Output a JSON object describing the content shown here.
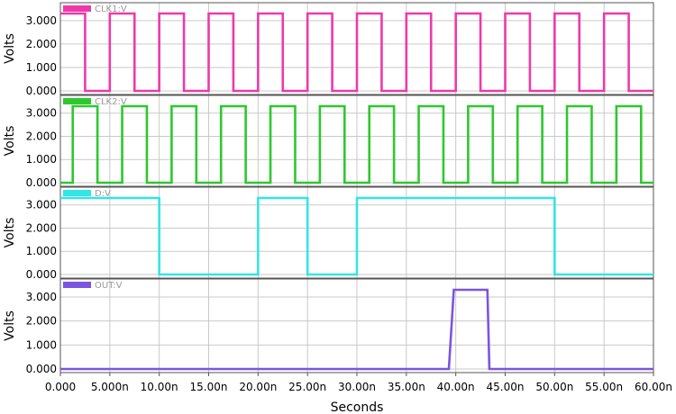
{
  "chart_data": {
    "type": "line",
    "xlabel": "Seconds",
    "x_ticks": [
      "0.000",
      "5.000n",
      "10.00n",
      "15.00n",
      "20.00n",
      "25.00n",
      "30.00n",
      "35.00n",
      "40.00n",
      "45.00n",
      "50.00n",
      "55.00n",
      "60.00n"
    ],
    "xlim": [
      0,
      60
    ],
    "x_unit": "ns",
    "grid": true,
    "panels": [
      {
        "ylabel": "Volts",
        "y_ticks": [
          "0.000",
          "1.000",
          "2.000",
          "3.000"
        ],
        "ylim": [
          0,
          3.3
        ],
        "series": [
          {
            "name": "CLK1:V",
            "color": "#ee3aa9",
            "points": [
              [
                0,
                3.3
              ],
              [
                2.5,
                3.3
              ],
              [
                2.5,
                0
              ],
              [
                5,
                0
              ],
              [
                5,
                3.3
              ],
              [
                7.5,
                3.3
              ],
              [
                7.5,
                0
              ],
              [
                10,
                0
              ],
              [
                10,
                3.3
              ],
              [
                12.5,
                3.3
              ],
              [
                12.5,
                0
              ],
              [
                15,
                0
              ],
              [
                15,
                3.3
              ],
              [
                17.5,
                3.3
              ],
              [
                17.5,
                0
              ],
              [
                20,
                0
              ],
              [
                20,
                3.3
              ],
              [
                22.5,
                3.3
              ],
              [
                22.5,
                0
              ],
              [
                25,
                0
              ],
              [
                25,
                3.3
              ],
              [
                27.5,
                3.3
              ],
              [
                27.5,
                0
              ],
              [
                30,
                0
              ],
              [
                30,
                3.3
              ],
              [
                32.5,
                3.3
              ],
              [
                32.5,
                0
              ],
              [
                35,
                0
              ],
              [
                35,
                3.3
              ],
              [
                37.5,
                3.3
              ],
              [
                37.5,
                0
              ],
              [
                40,
                0
              ],
              [
                40,
                3.3
              ],
              [
                42.5,
                3.3
              ],
              [
                42.5,
                0
              ],
              [
                45,
                0
              ],
              [
                45,
                3.3
              ],
              [
                47.5,
                3.3
              ],
              [
                47.5,
                0
              ],
              [
                50,
                0
              ],
              [
                50,
                3.3
              ],
              [
                52.5,
                3.3
              ],
              [
                52.5,
                0
              ],
              [
                55,
                0
              ],
              [
                55,
                3.3
              ],
              [
                57.5,
                3.3
              ],
              [
                57.5,
                0
              ],
              [
                60,
                0
              ]
            ]
          }
        ]
      },
      {
        "ylabel": "Volts",
        "y_ticks": [
          "0.000",
          "1.000",
          "2.000",
          "3.000"
        ],
        "ylim": [
          0,
          3.3
        ],
        "series": [
          {
            "name": "CLK2:V",
            "color": "#2ec82e",
            "points": [
              [
                0,
                0
              ],
              [
                1.25,
                0
              ],
              [
                1.25,
                3.3
              ],
              [
                3.75,
                3.3
              ],
              [
                3.75,
                0
              ],
              [
                6.25,
                0
              ],
              [
                6.25,
                3.3
              ],
              [
                8.75,
                3.3
              ],
              [
                8.75,
                0
              ],
              [
                11.25,
                0
              ],
              [
                11.25,
                3.3
              ],
              [
                13.75,
                3.3
              ],
              [
                13.75,
                0
              ],
              [
                16.25,
                0
              ],
              [
                16.25,
                3.3
              ],
              [
                18.75,
                3.3
              ],
              [
                18.75,
                0
              ],
              [
                21.25,
                0
              ],
              [
                21.25,
                3.3
              ],
              [
                23.75,
                3.3
              ],
              [
                23.75,
                0
              ],
              [
                26.25,
                0
              ],
              [
                26.25,
                3.3
              ],
              [
                28.75,
                3.3
              ],
              [
                28.75,
                0
              ],
              [
                31.25,
                0
              ],
              [
                31.25,
                3.3
              ],
              [
                33.75,
                3.3
              ],
              [
                33.75,
                0
              ],
              [
                36.25,
                0
              ],
              [
                36.25,
                3.3
              ],
              [
                38.75,
                3.3
              ],
              [
                38.75,
                0
              ],
              [
                41.25,
                0
              ],
              [
                41.25,
                3.3
              ],
              [
                43.75,
                3.3
              ],
              [
                43.75,
                0
              ],
              [
                46.25,
                0
              ],
              [
                46.25,
                3.3
              ],
              [
                48.75,
                3.3
              ],
              [
                48.75,
                0
              ],
              [
                51.25,
                0
              ],
              [
                51.25,
                3.3
              ],
              [
                53.75,
                3.3
              ],
              [
                53.75,
                0
              ],
              [
                56.25,
                0
              ],
              [
                56.25,
                3.3
              ],
              [
                58.75,
                3.3
              ],
              [
                58.75,
                0
              ],
              [
                60,
                0
              ]
            ]
          }
        ]
      },
      {
        "ylabel": "Volts",
        "y_ticks": [
          "0.000",
          "1.000",
          "2.000",
          "3.000"
        ],
        "ylim": [
          0,
          3.3
        ],
        "series": [
          {
            "name": "D:V",
            "color": "#33e5e5",
            "points": [
              [
                0,
                3.3
              ],
              [
                10,
                3.3
              ],
              [
                10,
                0
              ],
              [
                20,
                0
              ],
              [
                20,
                3.3
              ],
              [
                25,
                3.3
              ],
              [
                25,
                0
              ],
              [
                30,
                0
              ],
              [
                30,
                3.3
              ],
              [
                50,
                3.3
              ],
              [
                50,
                0
              ],
              [
                60,
                0
              ]
            ]
          }
        ]
      },
      {
        "ylabel": "Volts",
        "y_ticks": [
          "0.000",
          "1.000",
          "2.000",
          "3.000"
        ],
        "ylim": [
          0,
          3.3
        ],
        "series": [
          {
            "name": "OUT:V",
            "color": "#7b55e0",
            "points": [
              [
                0,
                0
              ],
              [
                39.3,
                0
              ],
              [
                39.8,
                3.3
              ],
              [
                43.2,
                3.3
              ],
              [
                43.4,
                0
              ],
              [
                60,
                0
              ]
            ]
          }
        ]
      }
    ]
  }
}
